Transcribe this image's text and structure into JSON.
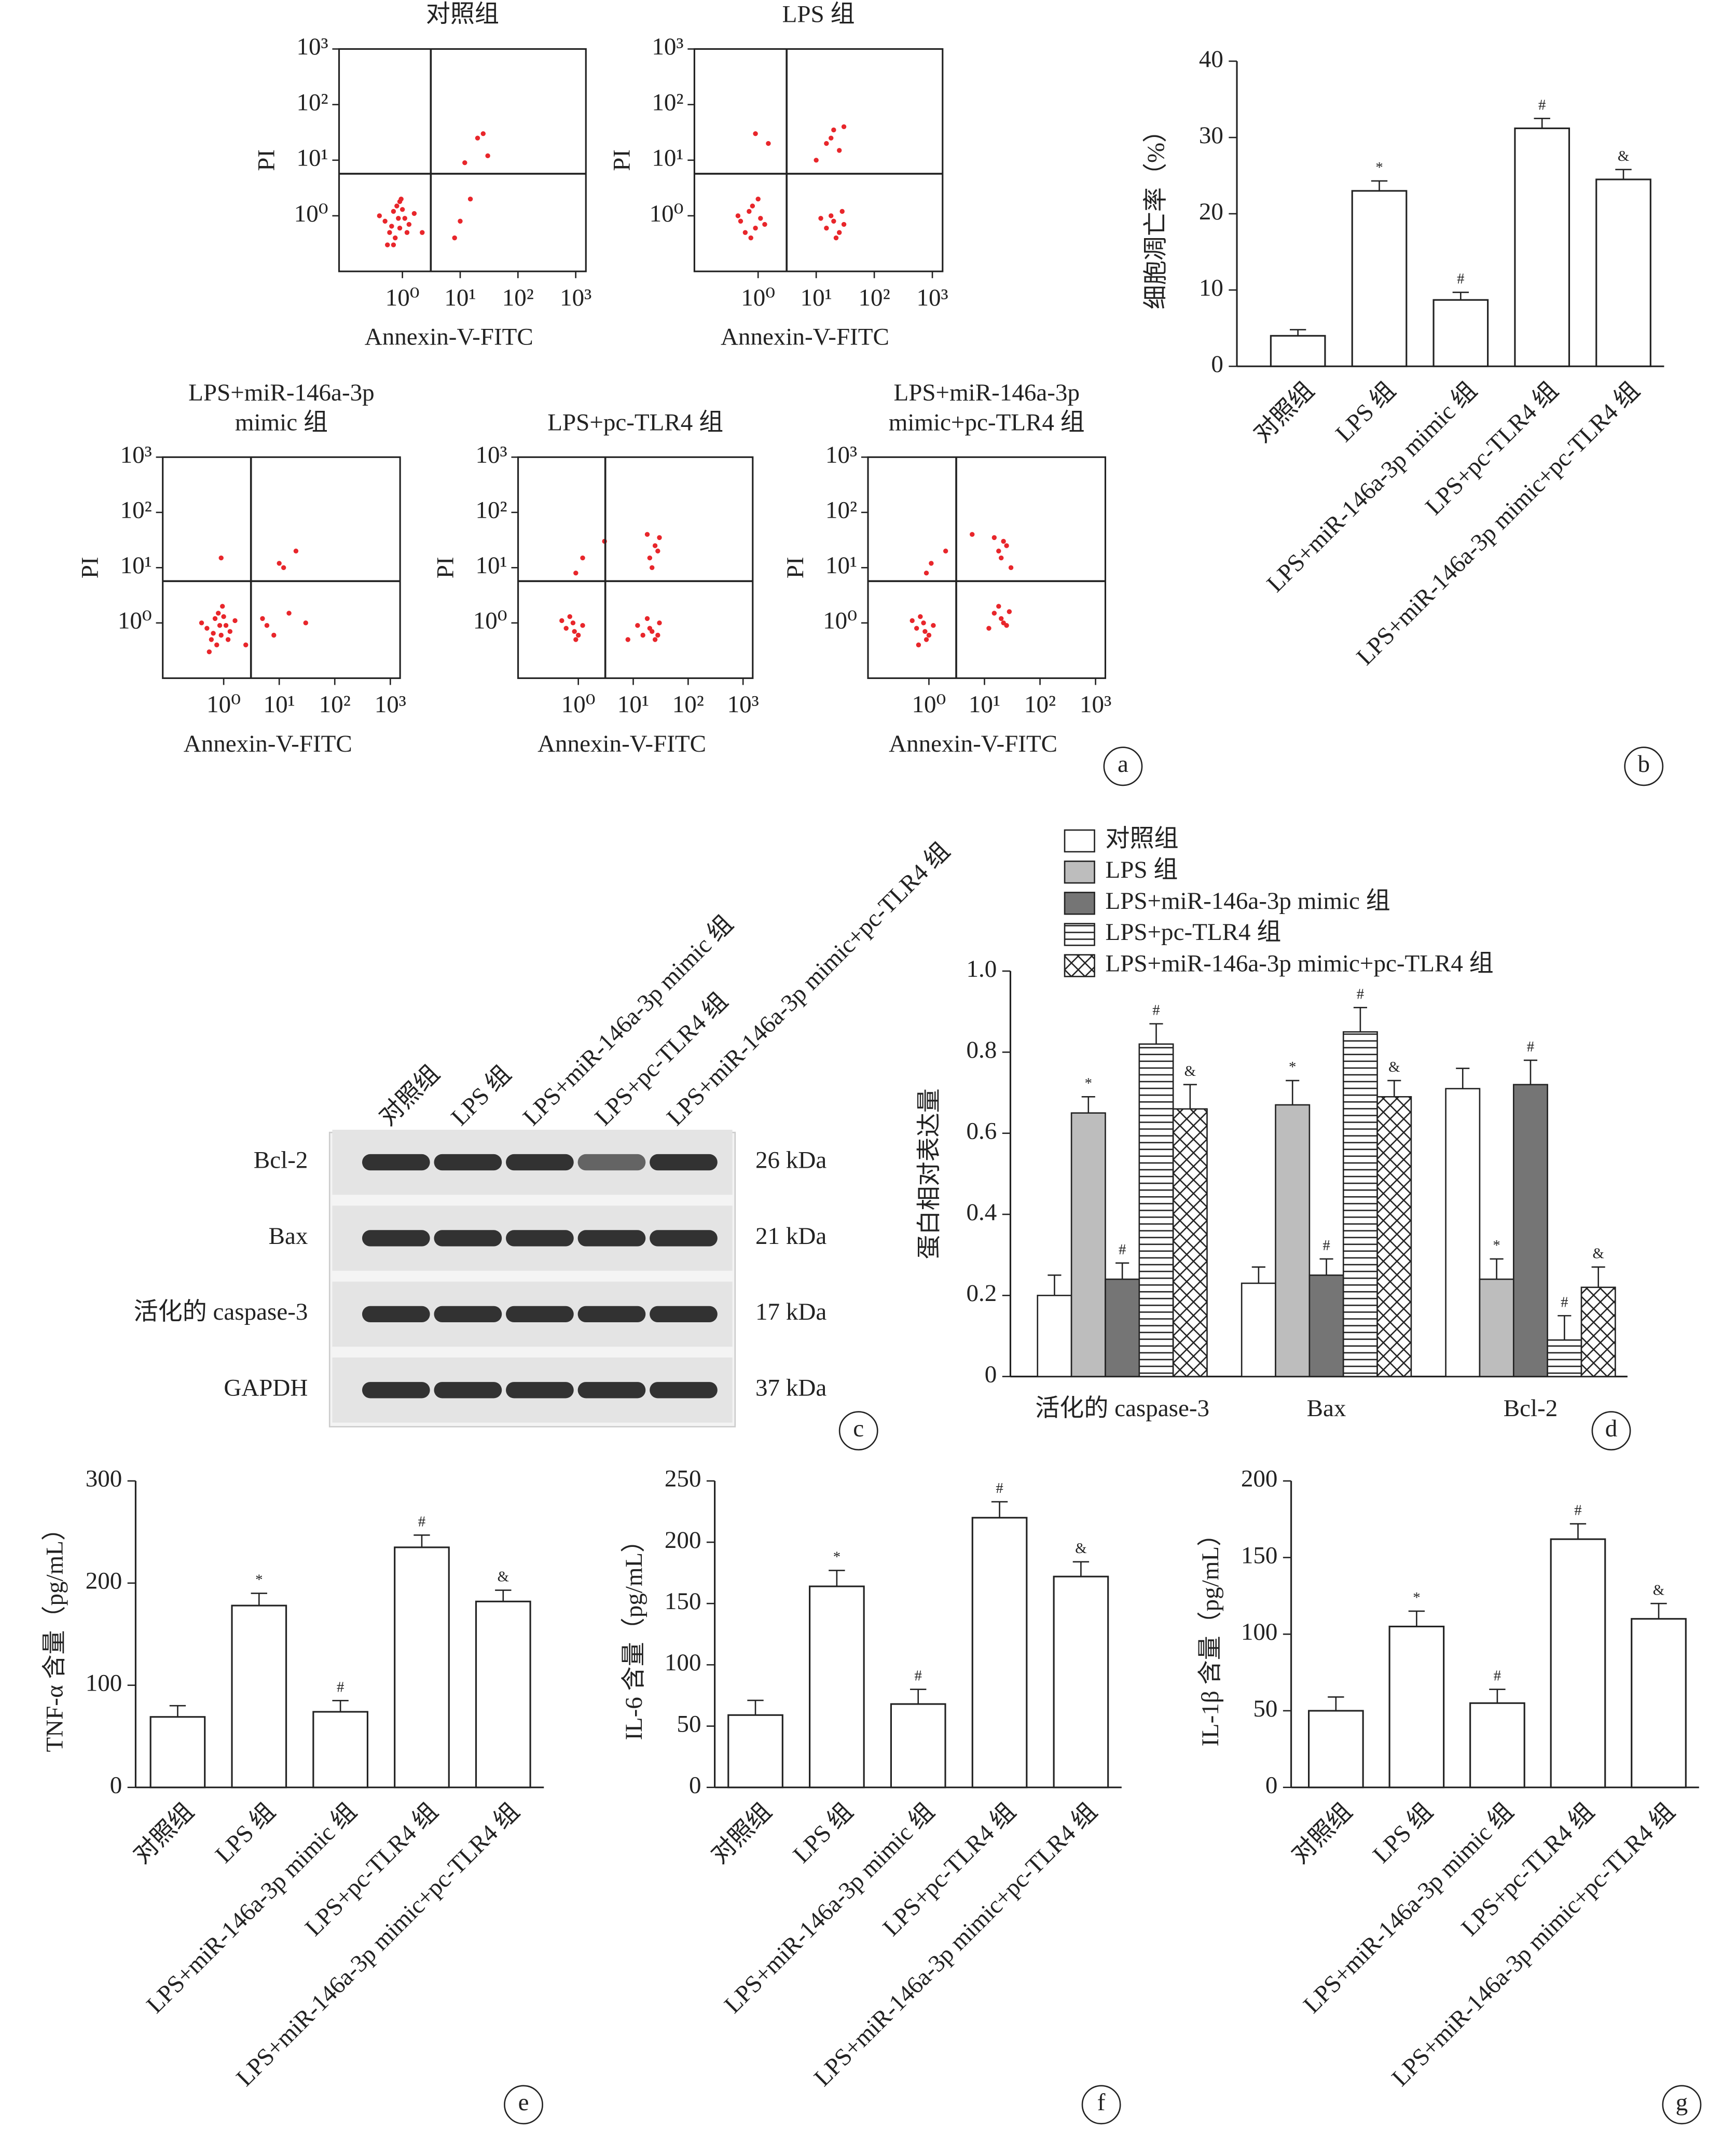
{
  "chart_data": [
    {
      "type": "scatter",
      "title": [
        "对照组"
      ],
      "xlabel": "Annexin-V-FITC",
      "ylabel": "PI",
      "log": true,
      "color": "#e8262b",
      "xlim": [
        0.08,
        1500
      ],
      "ylim": [
        0.1,
        1000
      ],
      "quadrant": [
        3.1,
        5.7
      ],
      "xticks": [
        {
          "value": 1,
          "label": "10⁰"
        },
        {
          "value": 10,
          "label": "10¹"
        },
        {
          "value": 100,
          "label": "10²"
        },
        {
          "value": 1000,
          "label": "10³"
        }
      ],
      "yticks": [
        {
          "value": 1,
          "label": "10⁰"
        },
        {
          "value": 10,
          "label": "10¹"
        },
        {
          "value": 100,
          "label": "10²"
        },
        {
          "value": 1000,
          "label": "10³"
        }
      ],
      "x": [
        0.5,
        0.7,
        0.9,
        1.1,
        0.6,
        0.8,
        1.3,
        0.4,
        0.75,
        0.95,
        1.6,
        0.55,
        0.85,
        1.0,
        0.65,
        1.2,
        0.7,
        0.9,
        12,
        20,
        8,
        15,
        25,
        2.2,
        30,
        10
      ],
      "y": [
        0.8,
        1.2,
        0.6,
        0.9,
        0.5,
        1.5,
        0.7,
        1.0,
        0.4,
        2.0,
        1.1,
        0.3,
        0.9,
        1.3,
        0.65,
        0.5,
        0.3,
        1.8,
        9,
        25,
        0.4,
        2,
        30,
        0.5,
        12,
        0.8
      ]
    },
    {
      "type": "scatter",
      "title": [
        "LPS 组"
      ],
      "xlabel": "Annexin-V-FITC",
      "ylabel": "PI",
      "log": true,
      "color": "#e8262b",
      "xlim": [
        0.08,
        1500
      ],
      "ylim": [
        0.1,
        1000
      ],
      "quadrant": [
        3.1,
        5.7
      ],
      "xticks": [
        {
          "value": 1,
          "label": "10⁰"
        },
        {
          "value": 10,
          "label": "10¹"
        },
        {
          "value": 100,
          "label": "10²"
        },
        {
          "value": 1000,
          "label": "10³"
        }
      ],
      "yticks": [
        {
          "value": 1,
          "label": "10⁰"
        },
        {
          "value": 10,
          "label": "10¹"
        },
        {
          "value": 100,
          "label": "10²"
        },
        {
          "value": 1000,
          "label": "10³"
        }
      ],
      "x": [
        0.5,
        0.7,
        0.9,
        1.1,
        0.6,
        0.8,
        1.3,
        0.45,
        0.75,
        1.0,
        15,
        20,
        25,
        18,
        30,
        22,
        12,
        28,
        15,
        20,
        25,
        10,
        30,
        18,
        1.5,
        0.9
      ],
      "y": [
        0.8,
        1.2,
        0.6,
        0.9,
        0.5,
        1.5,
        0.7,
        1.0,
        0.4,
        2.0,
        0.6,
        0.8,
        0.5,
        1.0,
        0.7,
        0.4,
        0.9,
        1.2,
        20,
        35,
        15,
        10,
        40,
        25,
        20,
        30
      ]
    },
    {
      "type": "scatter",
      "title": [
        "LPS+miR-146a-3p",
        "mimic 组"
      ],
      "xlabel": "Annexin-V-FITC",
      "ylabel": "PI",
      "log": true,
      "color": "#e8262b",
      "xlim": [
        0.08,
        1500
      ],
      "ylim": [
        0.1,
        1000
      ],
      "quadrant": [
        3.1,
        5.7
      ],
      "xticks": [
        {
          "value": 1,
          "label": "10⁰"
        },
        {
          "value": 10,
          "label": "10¹"
        },
        {
          "value": 100,
          "label": "10²"
        },
        {
          "value": 1000,
          "label": "10³"
        }
      ],
      "yticks": [
        {
          "value": 1,
          "label": "10⁰"
        },
        {
          "value": 10,
          "label": "10¹"
        },
        {
          "value": 100,
          "label": "10²"
        },
        {
          "value": 1000,
          "label": "10³"
        }
      ],
      "x": [
        0.5,
        0.7,
        0.9,
        1.1,
        0.6,
        0.8,
        1.3,
        0.4,
        0.75,
        0.95,
        1.6,
        0.55,
        0.85,
        1.0,
        0.65,
        1.2,
        5,
        8,
        12,
        20,
        6,
        15,
        30,
        2.5,
        10,
        0.9
      ],
      "y": [
        0.8,
        1.2,
        0.6,
        0.9,
        0.5,
        1.5,
        0.7,
        1.0,
        0.4,
        2.0,
        1.1,
        0.3,
        0.9,
        1.3,
        0.65,
        0.5,
        1.2,
        0.6,
        10,
        20,
        0.9,
        1.5,
        1.0,
        0.4,
        12,
        15
      ]
    },
    {
      "type": "scatter",
      "title": [
        "LPS+pc-TLR4 组"
      ],
      "xlabel": "Annexin-V-FITC",
      "ylabel": "PI",
      "log": true,
      "color": "#e8262b",
      "xlim": [
        0.08,
        1500
      ],
      "ylim": [
        0.1,
        1000
      ],
      "quadrant": [
        3.1,
        5.7
      ],
      "xticks": [
        {
          "value": 1,
          "label": "10⁰"
        },
        {
          "value": 10,
          "label": "10¹"
        },
        {
          "value": 100,
          "label": "10²"
        },
        {
          "value": 1000,
          "label": "10³"
        }
      ],
      "yticks": [
        {
          "value": 1,
          "label": "10⁰"
        },
        {
          "value": 10,
          "label": "10¹"
        },
        {
          "value": 100,
          "label": "10²"
        },
        {
          "value": 1000,
          "label": "10³"
        }
      ],
      "x": [
        0.6,
        0.8,
        1.0,
        0.7,
        0.9,
        1.2,
        0.5,
        0.85,
        15,
        20,
        25,
        30,
        18,
        22,
        12,
        28,
        8,
        20,
        25,
        30,
        18,
        22,
        28,
        3,
        1.2,
        0.9
      ],
      "y": [
        0.8,
        1.0,
        0.6,
        1.3,
        0.5,
        0.9,
        1.1,
        0.7,
        0.6,
        0.8,
        0.5,
        1.0,
        1.2,
        0.7,
        0.9,
        0.6,
        0.5,
        15,
        25,
        35,
        40,
        10,
        20,
        30,
        15,
        8
      ]
    },
    {
      "type": "scatter",
      "title": [
        "LPS+miR-146a-3p",
        "mimic+pc-TLR4 组"
      ],
      "xlabel": "Annexin-V-FITC",
      "ylabel": "PI",
      "log": true,
      "color": "#e8262b",
      "panel": "a",
      "xlim": [
        0.08,
        1500
      ],
      "ylim": [
        0.1,
        1000
      ],
      "quadrant": [
        3.1,
        5.7
      ],
      "xticks": [
        {
          "value": 1,
          "label": "10⁰"
        },
        {
          "value": 10,
          "label": "10¹"
        },
        {
          "value": 100,
          "label": "10²"
        },
        {
          "value": 1000,
          "label": "10³"
        }
      ],
      "yticks": [
        {
          "value": 1,
          "label": "10⁰"
        },
        {
          "value": 10,
          "label": "10¹"
        },
        {
          "value": 100,
          "label": "10²"
        },
        {
          "value": 1000,
          "label": "10³"
        }
      ],
      "x": [
        0.6,
        0.8,
        1.0,
        0.7,
        0.9,
        1.2,
        0.5,
        0.85,
        0.65,
        15,
        20,
        25,
        18,
        22,
        12,
        28,
        20,
        25,
        15,
        30,
        18,
        22,
        2,
        6,
        0.9,
        1.1
      ],
      "y": [
        0.8,
        1.0,
        0.6,
        1.3,
        0.5,
        0.9,
        1.1,
        0.7,
        0.4,
        1.5,
        1.2,
        0.9,
        2.0,
        1.0,
        0.8,
        1.6,
        15,
        25,
        35,
        10,
        20,
        30,
        20,
        40,
        8,
        12
      ]
    },
    {
      "type": "bar",
      "panel": "b",
      "ylabel": "细胞凋亡率（%）",
      "color": "#ffffff",
      "categories": [
        "对照组",
        "LPS 组",
        "LPS+miR-146a-3p mimic 组",
        "LPS+pc-TLR4 组",
        "LPS+miR-146a-3p mimic+pc-TLR4 组"
      ],
      "values": [
        4,
        23,
        8.7,
        31.2,
        24.5
      ],
      "errors": [
        0.8,
        1.3,
        1,
        1.3,
        1.3
      ],
      "annotations": [
        null,
        "*",
        "#",
        "#",
        "&"
      ],
      "ylim": [
        0,
        40
      ],
      "yticks": [
        0,
        10,
        20,
        30,
        40
      ]
    },
    {
      "type": "blot",
      "panel": "c",
      "lanes": [
        "对照组",
        "LPS 组",
        "LPS+miR-146a-3p mimic 组",
        "LPS+pc-TLR4 组",
        "LPS+miR-146a-3p mimic+pc-TLR4 组"
      ],
      "rows": [
        {
          "name": "Bcl-2",
          "size": "26 kDa"
        },
        {
          "name": "Bax",
          "size": "21 kDa"
        },
        {
          "name": "活化的 caspase-3",
          "size": "17 kDa"
        },
        {
          "name": "GAPDH",
          "size": "37 kDa"
        }
      ]
    },
    {
      "type": "grouped_bar",
      "panel": "d",
      "ylabel": "蛋白相对表达量",
      "categories": [
        "活化的 caspase-3",
        "Bax",
        "Bcl-2"
      ],
      "series": [
        {
          "name": "对照组",
          "color": "#ffffff",
          "values": [
            0.2,
            0.23,
            0.71
          ],
          "errors": [
            0.05,
            0.04,
            0.05
          ],
          "annotations": [
            null,
            null,
            null
          ]
        },
        {
          "name": "LPS 组",
          "color": "#bdbdbd",
          "values": [
            0.65,
            0.67,
            0.24
          ],
          "errors": [
            0.04,
            0.06,
            0.05
          ],
          "annotations": [
            "*",
            "*",
            "*"
          ]
        },
        {
          "name": "LPS+miR-146a-3p mimic 组",
          "color": "#757575",
          "values": [
            0.24,
            0.25,
            0.72
          ],
          "errors": [
            0.04,
            0.04,
            0.06
          ],
          "annotations": [
            "#",
            "#",
            "#"
          ]
        },
        {
          "name": "LPS+pc-TLR4 组",
          "color": "#ffffff",
          "hatch": "horizontal",
          "values": [
            0.82,
            0.85,
            0.09
          ],
          "errors": [
            0.05,
            0.06,
            0.06
          ],
          "annotations": [
            "#",
            "#",
            "#"
          ]
        },
        {
          "name": "LPS+miR-146a-3p mimic+pc-TLR4 组",
          "color": "#ffffff",
          "hatch": "cross",
          "values": [
            0.66,
            0.69,
            0.22
          ],
          "errors": [
            0.06,
            0.04,
            0.05
          ],
          "annotations": [
            "&",
            "&",
            "&"
          ]
        }
      ],
      "ylim": [
        0,
        1
      ],
      "yticks": [
        0,
        0.2,
        0.4,
        0.6,
        0.8,
        {
          "value": 1,
          "label": "1.0"
        }
      ]
    },
    {
      "type": "bar",
      "panel": "e",
      "ylabel": "TNF-α 含量（pg/mL）",
      "color": "#ffffff",
      "categories": [
        "对照组",
        "LPS 组",
        "LPS+miR-146a-3p mimic 组",
        "LPS+pc-TLR4 组",
        "LPS+miR-146a-3p mimic+pc-TLR4 组"
      ],
      "values": [
        69,
        178,
        74,
        235,
        182
      ],
      "errors": [
        11,
        12,
        11,
        12,
        11
      ],
      "annotations": [
        null,
        "*",
        "#",
        "#",
        "&"
      ],
      "ylim": [
        0,
        300
      ],
      "yticks": [
        0,
        100,
        200,
        300
      ]
    },
    {
      "type": "bar",
      "panel": "f",
      "ylabel": "IL-6 含量（pg/mL）",
      "color": "#ffffff",
      "categories": [
        "对照组",
        "LPS 组",
        "LPS+miR-146a-3p mimic 组",
        "LPS+pc-TLR4 组",
        "LPS+miR-146a-3p mimic+pc-TLR4 组"
      ],
      "values": [
        59,
        164,
        68,
        220,
        172
      ],
      "errors": [
        12,
        13,
        12,
        13,
        12
      ],
      "annotations": [
        null,
        "*",
        "#",
        "#",
        "&"
      ],
      "ylim": [
        0,
        250
      ],
      "yticks": [
        0,
        50,
        100,
        150,
        200,
        250
      ]
    },
    {
      "type": "bar",
      "panel": "g",
      "ylabel": "IL-1β 含量（pg/mL）",
      "color": "#ffffff",
      "categories": [
        "对照组",
        "LPS 组",
        "LPS+miR-146a-3p mimic 组",
        "LPS+pc-TLR4 组",
        "LPS+miR-146a-3p mimic+pc-TLR4 组"
      ],
      "values": [
        50,
        105,
        55,
        162,
        110
      ],
      "errors": [
        9,
        10,
        9,
        10,
        10
      ],
      "annotations": [
        null,
        "*",
        "#",
        "#",
        "&"
      ],
      "ylim": [
        0,
        200
      ],
      "yticks": [
        0,
        50,
        100,
        150,
        200
      ]
    }
  ]
}
